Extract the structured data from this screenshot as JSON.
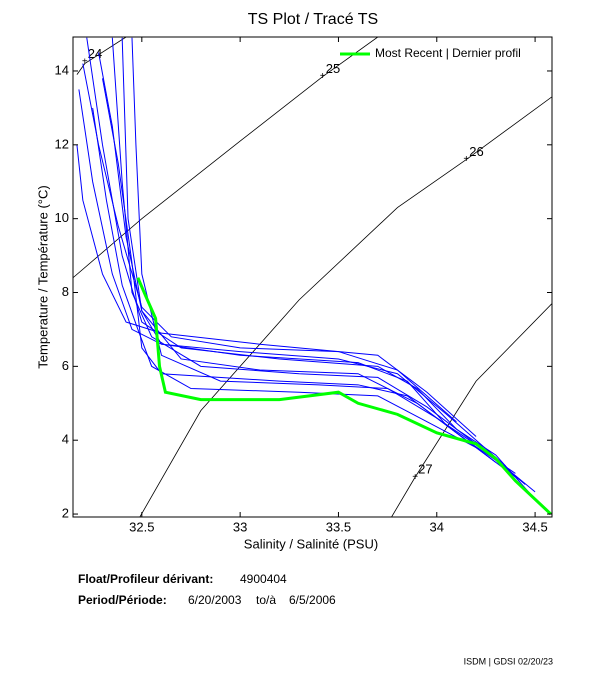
{
  "chart_data": {
    "type": "ts",
    "title": "TS Plot / Tracé TS",
    "xlabel": "Salinity / Salinité (PSU)",
    "ylabel": "Temperature / Température (°C)",
    "xlim": [
      32.15,
      34.586
    ],
    "ylim": [
      1.92,
      14.92
    ],
    "xticks": [
      32.5,
      33,
      33.5,
      34,
      34.5
    ],
    "yticks": [
      2,
      4,
      6,
      8,
      10,
      12,
      14
    ],
    "legend": "top-right",
    "series": [
      {
        "name": "Most Recent | Dernier profil",
        "color": "#00ff00",
        "x": [
          32.48,
          32.52,
          32.57,
          32.59,
          32.62,
          32.8,
          33.2,
          33.5,
          33.6,
          33.8,
          34.0,
          34.2,
          34.3,
          34.4,
          34.58
        ],
        "y": [
          8.4,
          7.9,
          7.3,
          6.0,
          5.3,
          5.1,
          5.1,
          5.3,
          5.0,
          4.7,
          4.2,
          3.9,
          3.5,
          2.9,
          2.0
        ]
      }
    ],
    "profile_color": "#0000ff",
    "profiles": [
      {
        "x": [
          32.22,
          32.3,
          32.4,
          32.5,
          32.7,
          33.2,
          33.7,
          33.9,
          34.1,
          34.3,
          34.5
        ],
        "y": [
          14.9,
          12,
          9,
          7.2,
          6.5,
          6.2,
          6.0,
          5.4,
          4.3,
          3.6,
          2.4
        ]
      },
      {
        "x": [
          32.18,
          32.25,
          32.35,
          32.45,
          32.6,
          33.0,
          33.6,
          33.85,
          34.05,
          34.3
        ],
        "y": [
          13.5,
          11,
          8.5,
          7.0,
          6.6,
          6.3,
          6.1,
          5.6,
          4.4,
          3.4
        ]
      },
      {
        "x": [
          32.35,
          32.4,
          32.45,
          32.55,
          32.8,
          33.3,
          33.7,
          33.95,
          34.2,
          34.45
        ],
        "y": [
          14.9,
          11,
          8,
          6.8,
          6.0,
          5.8,
          5.7,
          4.9,
          3.9,
          2.8
        ]
      },
      {
        "x": [
          32.28,
          32.35,
          32.42,
          32.5,
          32.7,
          33.1,
          33.6,
          33.9,
          34.15,
          34.4
        ],
        "y": [
          14.5,
          12.5,
          9.5,
          7.5,
          6.2,
          5.9,
          5.8,
          5.0,
          4.0,
          3.1
        ]
      },
      {
        "x": [
          32.2,
          32.28,
          32.38,
          32.5,
          32.65,
          33.0,
          33.5,
          33.8,
          34.1
        ],
        "y": [
          14.2,
          12.0,
          9.8,
          7.6,
          6.8,
          6.5,
          6.4,
          5.9,
          4.5
        ]
      },
      {
        "x": [
          32.45,
          32.47,
          32.5,
          32.6,
          32.9,
          33.4,
          33.75,
          34.0,
          34.25,
          34.5
        ],
        "y": [
          14.9,
          12,
          8.5,
          6.3,
          5.6,
          5.5,
          5.4,
          4.6,
          3.7,
          2.6
        ]
      },
      {
        "x": [
          32.25,
          32.32,
          32.4,
          32.48,
          32.55,
          32.75,
          33.3,
          33.7,
          33.95,
          34.2
        ],
        "y": [
          13.0,
          10.5,
          8.2,
          7.0,
          6.0,
          5.4,
          5.3,
          5.2,
          4.5,
          3.8
        ]
      },
      {
        "x": [
          32.4,
          32.43,
          32.5,
          32.6,
          33.0,
          33.5,
          33.8,
          34.05,
          34.35
        ],
        "y": [
          14.9,
          10,
          7.5,
          6.6,
          6.4,
          6.2,
          5.8,
          4.7,
          3.3
        ]
      },
      {
        "x": [
          32.3,
          32.38,
          32.45,
          32.5,
          32.6,
          33.2,
          33.6,
          33.85,
          34.1,
          34.4
        ],
        "y": [
          13.8,
          11.5,
          8.8,
          6.5,
          5.8,
          5.6,
          5.5,
          5.2,
          4.2,
          3.0
        ]
      },
      {
        "x": [
          32.17,
          32.2,
          32.3,
          32.42,
          32.6,
          33.1,
          33.7,
          33.95,
          34.2
        ],
        "y": [
          12,
          10.5,
          8.5,
          7.2,
          6.9,
          6.6,
          6.3,
          5.3,
          4.1
        ]
      }
    ],
    "contours": [
      {
        "label": 24,
        "x": [
          32.17,
          32.21,
          32.42
        ],
        "y": [
          13.9,
          14.2,
          14.92
        ],
        "label_x": 32.21,
        "label_y": 14.25
      },
      {
        "label": 25,
        "x": [
          32.15,
          32.5,
          33.0,
          33.42,
          33.7
        ],
        "y": [
          8.4,
          10.0,
          12.1,
          13.85,
          14.92
        ],
        "label_x": 33.42,
        "label_y": 13.85
      },
      {
        "label": 26,
        "x": [
          32.49,
          32.8,
          33.3,
          33.8,
          34.15,
          34.586
        ],
        "y": [
          1.92,
          4.8,
          7.8,
          10.3,
          11.6,
          13.3
        ],
        "label_x": 34.15,
        "label_y": 11.6
      },
      {
        "label": 27,
        "x": [
          33.77,
          33.89,
          34.2,
          34.586
        ],
        "y": [
          1.92,
          3.0,
          5.6,
          7.7
        ],
        "label_x": 33.89,
        "label_y": 3.0
      }
    ]
  },
  "info": {
    "float_label": "Float/Profileur dérivant:",
    "float_id": "4900404",
    "period_label": "Period/Période:",
    "start": "6/20/2003",
    "to": "to/à",
    "end": "6/5/2006",
    "footer": "ISDM | GDSI  02/20/23"
  }
}
